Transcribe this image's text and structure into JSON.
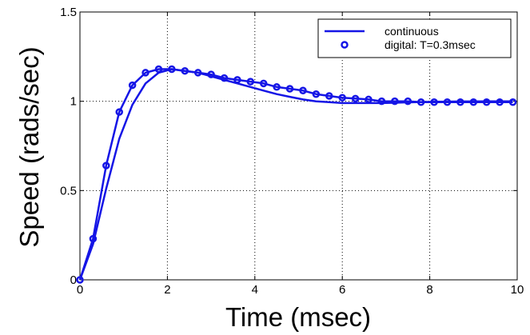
{
  "chart_data": {
    "type": "line",
    "xlabel": "Time (msec)",
    "ylabel": "Speed (rads/sec)",
    "xlim": [
      0,
      10
    ],
    "ylim": [
      0,
      1.5
    ],
    "xticks": [
      0,
      2,
      4,
      6,
      8,
      10
    ],
    "xtick_labels": [
      "0",
      "2",
      "4",
      "6",
      "8",
      "10"
    ],
    "yticks": [
      0,
      0.5,
      1,
      1.5
    ],
    "ytick_labels": [
      "0",
      "0.5",
      "1",
      "1.5"
    ],
    "grid": true,
    "legend_position": "top-right",
    "colors": {
      "series": "#1515e6",
      "axis": "#000000",
      "grid": "#000000"
    },
    "series": [
      {
        "name": "continuous",
        "style": "line",
        "x": [
          0,
          0.3,
          0.6,
          0.9,
          1.2,
          1.5,
          1.8,
          2.1,
          2.4,
          2.7,
          3.0,
          3.3,
          3.6,
          3.9,
          4.2,
          4.5,
          4.8,
          5.1,
          5.4,
          5.7,
          6.0,
          6.3,
          6.6,
          6.9,
          7.2,
          7.5,
          7.8,
          8.1,
          8.4,
          8.7,
          9.0,
          9.3,
          9.6,
          9.9
        ],
        "y": [
          0,
          0.2,
          0.51,
          0.79,
          0.98,
          1.1,
          1.16,
          1.18,
          1.17,
          1.16,
          1.14,
          1.12,
          1.1,
          1.08,
          1.06,
          1.04,
          1.025,
          1.01,
          1.0,
          0.995,
          0.99,
          0.99,
          0.99,
          0.99,
          0.992,
          0.994,
          0.996,
          0.997,
          0.998,
          0.999,
          0.999,
          1.0,
          1.0,
          1.0
        ]
      },
      {
        "name": "digital: T=0.3msec",
        "style": "line+markers",
        "x": [
          0,
          0.3,
          0.6,
          0.9,
          1.2,
          1.5,
          1.8,
          2.1,
          2.4,
          2.7,
          3.0,
          3.3,
          3.6,
          3.9,
          4.2,
          4.5,
          4.8,
          5.1,
          5.4,
          5.7,
          6.0,
          6.3,
          6.6,
          6.9,
          7.2,
          7.5,
          7.8,
          8.1,
          8.4,
          8.7,
          9.0,
          9.3,
          9.6,
          9.9
        ],
        "y": [
          0,
          0.23,
          0.64,
          0.94,
          1.09,
          1.16,
          1.18,
          1.18,
          1.17,
          1.16,
          1.15,
          1.13,
          1.12,
          1.11,
          1.1,
          1.08,
          1.07,
          1.06,
          1.04,
          1.03,
          1.02,
          1.015,
          1.01,
          1.0,
          1.0,
          1.0,
          0.995,
          0.995,
          0.995,
          0.995,
          0.995,
          0.995,
          0.995,
          0.995
        ]
      }
    ]
  }
}
